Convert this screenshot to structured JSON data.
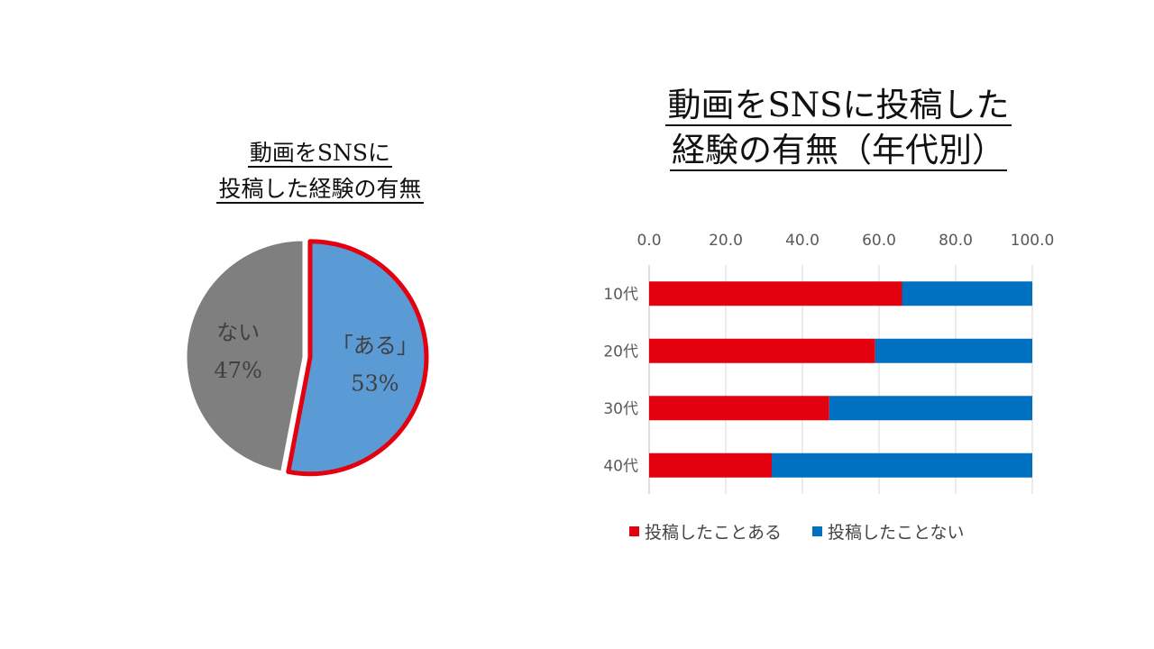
{
  "chart_data": [
    {
      "type": "pie",
      "title_lines": [
        "動画をSNSに",
        "投稿した経験の有無"
      ],
      "slices": [
        {
          "label": "「ある」",
          "percent_label": "53%",
          "value": 53,
          "color": "#5b9bd5",
          "highlight": "#e3000f"
        },
        {
          "label": "ない",
          "percent_label": "47%",
          "value": 47,
          "color": "#7f7f7f"
        }
      ]
    },
    {
      "type": "bar",
      "orientation": "horizontal",
      "stacked": true,
      "title_lines": [
        "動画をSNSに投稿した",
        "経験の有無（年代別）"
      ],
      "categories": [
        "10代",
        "20代",
        "30代",
        "40代"
      ],
      "series": [
        {
          "name": "投稿したことある",
          "color": "#e3000f",
          "values": [
            66,
            59,
            47,
            32
          ]
        },
        {
          "name": "投稿したことない",
          "color": "#0070c0",
          "values": [
            34,
            41,
            53,
            68
          ]
        }
      ],
      "xlim": [
        0,
        100
      ],
      "ticks": [
        "0.0",
        "20.0",
        "40.0",
        "60.0",
        "80.0",
        "100.0"
      ],
      "tick_values": [
        0,
        20,
        40,
        60,
        80,
        100
      ],
      "axis_position": "top",
      "gridlines": true,
      "legend_position": "bottom"
    }
  ]
}
